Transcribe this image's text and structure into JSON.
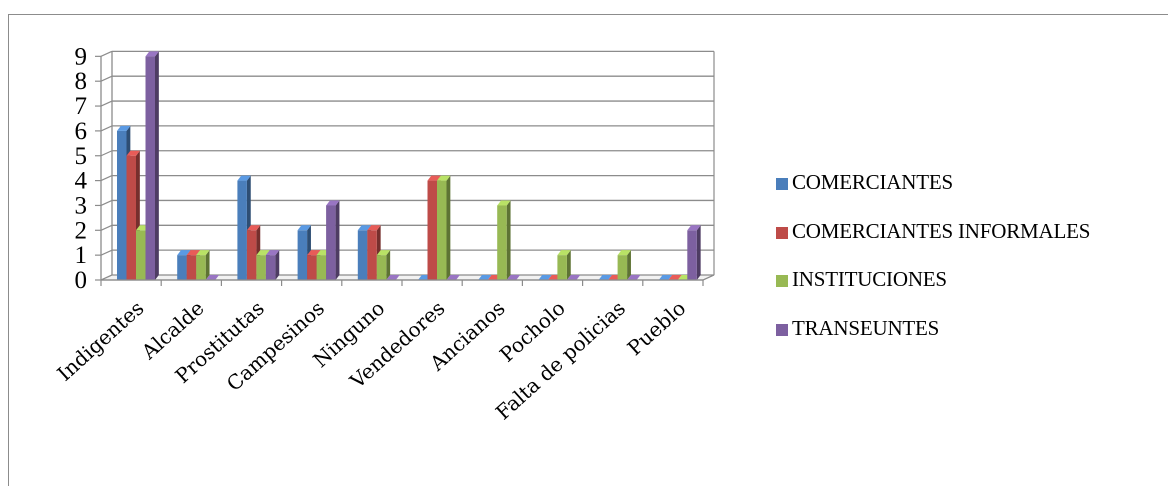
{
  "chart_data": {
    "type": "bar",
    "title": "",
    "xlabel": "",
    "ylabel": "",
    "ylim": [
      0,
      9
    ],
    "yticks": [
      0,
      1,
      2,
      3,
      4,
      5,
      6,
      7,
      8,
      9
    ],
    "grid": true,
    "legend_position": "right",
    "categories": [
      "Indigentes",
      "Alcalde",
      "Prostitutas",
      "Campesinos",
      "Ninguno",
      "Vendedores",
      "Ancianos",
      "Pocholo",
      "Falta de policias",
      "Pueblo"
    ],
    "series": [
      {
        "name": "COMERCIANTES",
        "color": "#4a7ebb",
        "values": [
          6,
          1,
          4,
          2,
          2,
          0,
          0,
          0,
          0,
          0
        ]
      },
      {
        "name": "COMERCIANTES INFORMALES",
        "color": "#be4b48",
        "values": [
          5,
          1,
          2,
          1,
          2,
          4,
          0,
          0,
          0,
          0
        ]
      },
      {
        "name": "INSTITUCIONES",
        "color": "#98b954",
        "values": [
          2,
          1,
          1,
          1,
          1,
          4,
          3,
          1,
          1,
          0
        ]
      },
      {
        "name": "TRANSEUNTES",
        "color": "#7d60a0",
        "values": [
          9,
          0,
          1,
          3,
          0,
          0,
          0,
          0,
          0,
          2
        ]
      }
    ]
  }
}
